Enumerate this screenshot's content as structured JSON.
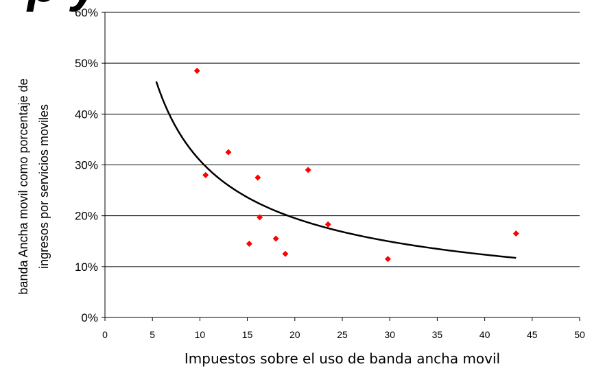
{
  "chart_data": {
    "type": "scatter",
    "title_fragment": "p    y",
    "xlabel": "Impuestos sobre el uso de banda ancha movil",
    "ylabel_line1": "banda Ancha movil como porcentaje de",
    "ylabel_line2": "ingresos por servicios moviles",
    "xlim": [
      0,
      50
    ],
    "ylim": [
      0,
      60
    ],
    "x_ticks": [
      "0",
      "5",
      "10",
      "15",
      "20",
      "25",
      "30",
      "35",
      "40",
      "45",
      "50"
    ],
    "y_ticks": [
      "0%",
      "10%",
      "20%",
      "30%",
      "40%",
      "50%",
      "60%"
    ],
    "grid": "horizontal",
    "point_color": "#ff0000",
    "trend_color": "#000000",
    "points": [
      {
        "x": 9.7,
        "y": 48.5
      },
      {
        "x": 10.6,
        "y": 28.0
      },
      {
        "x": 13.0,
        "y": 32.5
      },
      {
        "x": 15.2,
        "y": 14.5
      },
      {
        "x": 16.1,
        "y": 27.5
      },
      {
        "x": 16.3,
        "y": 19.7
      },
      {
        "x": 18.0,
        "y": 15.5
      },
      {
        "x": 19.0,
        "y": 12.5
      },
      {
        "x": 21.4,
        "y": 29.0
      },
      {
        "x": 23.5,
        "y": 18.3
      },
      {
        "x": 29.8,
        "y": 11.5
      },
      {
        "x": 43.3,
        "y": 16.5
      }
    ],
    "trendline": {
      "type": "power",
      "x_start": 5.4,
      "x_end": 43.3,
      "points": [
        {
          "x": 5.4,
          "y": 46.4
        },
        {
          "x": 7,
          "y": 38.9
        },
        {
          "x": 10,
          "y": 30.7
        },
        {
          "x": 15,
          "y": 23.9
        },
        {
          "x": 20,
          "y": 19.6
        },
        {
          "x": 25,
          "y": 17.0
        },
        {
          "x": 30,
          "y": 14.9
        },
        {
          "x": 35,
          "y": 13.4
        },
        {
          "x": 40,
          "y": 12.3
        },
        {
          "x": 43.3,
          "y": 11.7
        }
      ]
    }
  }
}
